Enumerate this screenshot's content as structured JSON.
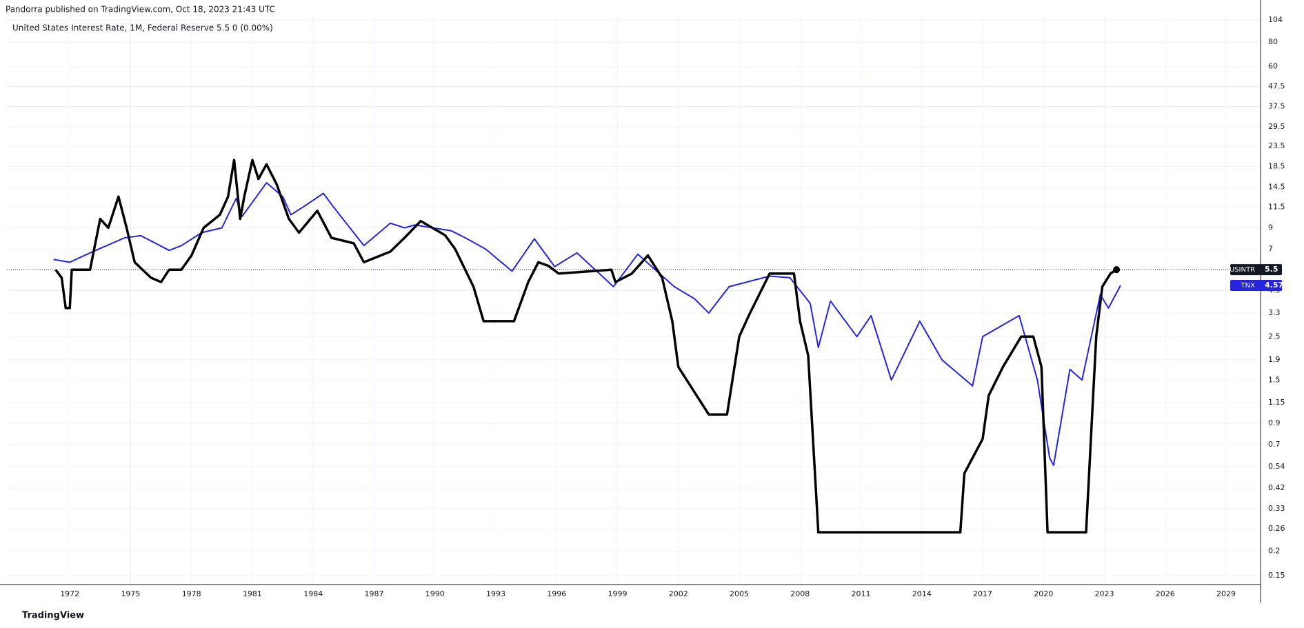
{
  "header": {
    "published": "Pandorra published on TradingView.com, Oct 18, 2023 21:43 UTC",
    "legend": "United States Interest Rate, 1M, Federal Reserve  5.5  0 (0.00%)"
  },
  "footer": {
    "brand": "TradingView"
  },
  "chart_data": {
    "type": "line",
    "log_scale": true,
    "grid": true,
    "xlim": [
      1968.9,
      2030.7
    ],
    "xticks": [
      1972,
      1975,
      1978,
      1981,
      1984,
      1987,
      1990,
      1993,
      1996,
      1999,
      2002,
      2005,
      2008,
      2011,
      2014,
      2017,
      2020,
      2023,
      2026,
      2029
    ],
    "ylim": [
      0.135,
      110
    ],
    "yticks": [
      0.15,
      0.2,
      0.26,
      0.33,
      0.42,
      0.54,
      0.7,
      0.9,
      1.15,
      1.5,
      1.9,
      2.5,
      3.3,
      4.3,
      7,
      9,
      11.5,
      14.5,
      18.5,
      23.5,
      29.5,
      37.5,
      47.5,
      60,
      80,
      104
    ],
    "series": [
      {
        "name": "USINTR",
        "color": "#000000",
        "x": [
          1971.3,
          1971.6,
          1971.8,
          1972.0,
          1972.1,
          1973.0,
          1973.5,
          1973.9,
          1974.4,
          1974.8,
          1975.2,
          1976.0,
          1976.5,
          1976.9,
          1977.5,
          1978.0,
          1978.6,
          1979.4,
          1979.8,
          1980.1,
          1980.4,
          1980.6,
          1981.0,
          1981.3,
          1981.7,
          1982.2,
          1982.8,
          1983.3,
          1984.2,
          1984.9,
          1986.0,
          1986.5,
          1987.8,
          1988.5,
          1989.3,
          1990.5,
          1991.0,
          1991.9,
          1992.4,
          1993.9,
          1994.6,
          1995.1,
          1995.6,
          1996.1,
          1998.7,
          1998.9,
          1999.7,
          2000.5,
          2001.2,
          2001.7,
          2002.0,
          2002.9,
          2003.5,
          2004.4,
          2005.0,
          2005.5,
          2006.5,
          2007.7,
          2008.0,
          2008.4,
          2008.9,
          2015.9,
          2016.1,
          2017.0,
          2017.3,
          2018.0,
          2018.9,
          2019.5,
          2019.9,
          2020.2,
          2022.1,
          2022.4,
          2022.6,
          2022.9,
          2023.3,
          2023.6
        ],
        "values": [
          5.5,
          5,
          3.5,
          3.5,
          5.5,
          5.5,
          10,
          9,
          13,
          9,
          6,
          5,
          4.75,
          5.5,
          5.5,
          6.5,
          9,
          10.5,
          13,
          20,
          10,
          13,
          20,
          16,
          19,
          15,
          10,
          8.5,
          11,
          8,
          7.5,
          6,
          6.8,
          8,
          9.75,
          8.25,
          7,
          4.5,
          3,
          3,
          4.75,
          6,
          5.75,
          5.25,
          5.5,
          4.75,
          5.25,
          6.5,
          5,
          3,
          1.75,
          1.25,
          1,
          1,
          2.5,
          3.25,
          5.25,
          5.25,
          3,
          2,
          0.25,
          0.25,
          0.5,
          0.75,
          1.25,
          1.75,
          2.5,
          2.5,
          1.75,
          0.25,
          0.25,
          1,
          2.5,
          4.5,
          5.25,
          5.5
        ]
      },
      {
        "name": "TNX",
        "color": "#2424e0",
        "x": [
          1971.2,
          1972.0,
          1973.0,
          1974.7,
          1975.5,
          1976.9,
          1977.5,
          1978.5,
          1979.5,
          1980.2,
          1980.5,
          1981.7,
          1982.5,
          1982.9,
          1983.5,
          1984.5,
          1985.0,
          1986.5,
          1987.8,
          1988.5,
          1989.0,
          1990.8,
          1991.5,
          1992.5,
          1993.8,
          1994.9,
          1995.9,
          1997.0,
          1998.8,
          2000.0,
          2001.8,
          2002.8,
          2003.5,
          2004.5,
          2006.5,
          2007.5,
          2008.5,
          2008.9,
          2009.5,
          2010.8,
          2011.5,
          2012.5,
          2013.9,
          2015.0,
          2016.5,
          2017.0,
          2018.8,
          2019.7,
          2020.3,
          2020.5,
          2021.3,
          2021.9,
          2022.8,
          2023.2,
          2023.8
        ],
        "values": [
          6.2,
          6.0,
          6.7,
          8.0,
          8.2,
          6.9,
          7.3,
          8.5,
          9,
          12.7,
          10.3,
          15.3,
          13,
          10.5,
          11.5,
          13.5,
          11.5,
          7.3,
          9.5,
          9,
          9.3,
          8.7,
          8,
          7,
          5.4,
          7.9,
          5.7,
          6.7,
          4.5,
          6.6,
          4.5,
          3.9,
          3.3,
          4.5,
          5.1,
          5,
          3.7,
          2.2,
          3.8,
          2.5,
          3.2,
          1.5,
          3.0,
          1.9,
          1.4,
          2.5,
          3.2,
          1.5,
          0.6,
          0.55,
          1.7,
          1.5,
          4.1,
          3.5,
          4.57
        ]
      }
    ]
  }
}
